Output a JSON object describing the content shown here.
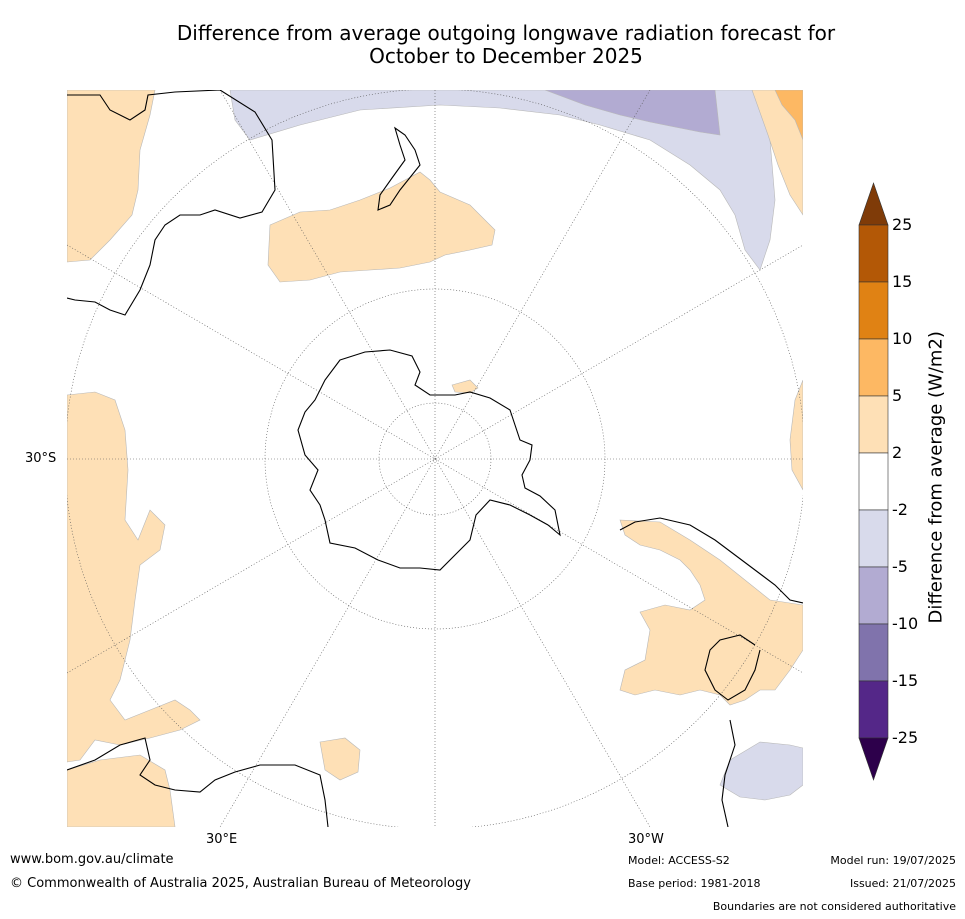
{
  "title": {
    "line1": "Difference from average outgoing longwave radiation forecast for",
    "line2": "October to December 2025"
  },
  "map": {
    "projection": "South polar stereographic",
    "labels": {
      "lat": "30°S",
      "lon_east": "30°E",
      "lon_west": "30°W"
    },
    "icons": [
      "antarctica-outline",
      "australia-outline",
      "new-zealand-outline",
      "south-america-outline",
      "africa-outline"
    ]
  },
  "colorbar": {
    "label": "Difference from average (W/m2)",
    "ticks": [
      "25",
      "15",
      "10",
      "5",
      "2",
      "-2",
      "-5",
      "-10",
      "-15",
      "-25"
    ],
    "colors": {
      "over": "#7f3b08",
      "c15_25": "#b35806",
      "c10_15": "#e08214",
      "c5_10": "#fdb863",
      "c2_5": "#fee0b6",
      "neutral": "#ffffff",
      "cm2_m5": "#d8daeb",
      "cm5_m10": "#b2abd2",
      "cm10_m15": "#8073ac",
      "cm15_m25": "#542788",
      "under": "#2d004b"
    }
  },
  "footer": {
    "website": "www.bom.gov.au/climate",
    "copyright": "© Commonwealth of Australia 2025, Australian Bureau of Meteorology",
    "model": "Model: ACCESS-S2",
    "base_period": "Base period: 1981-2018",
    "model_run": "Model run: 19/07/2025",
    "issued": "Issued: 21/07/2025",
    "disclaimer": "Boundaries are not considered authoritative"
  }
}
